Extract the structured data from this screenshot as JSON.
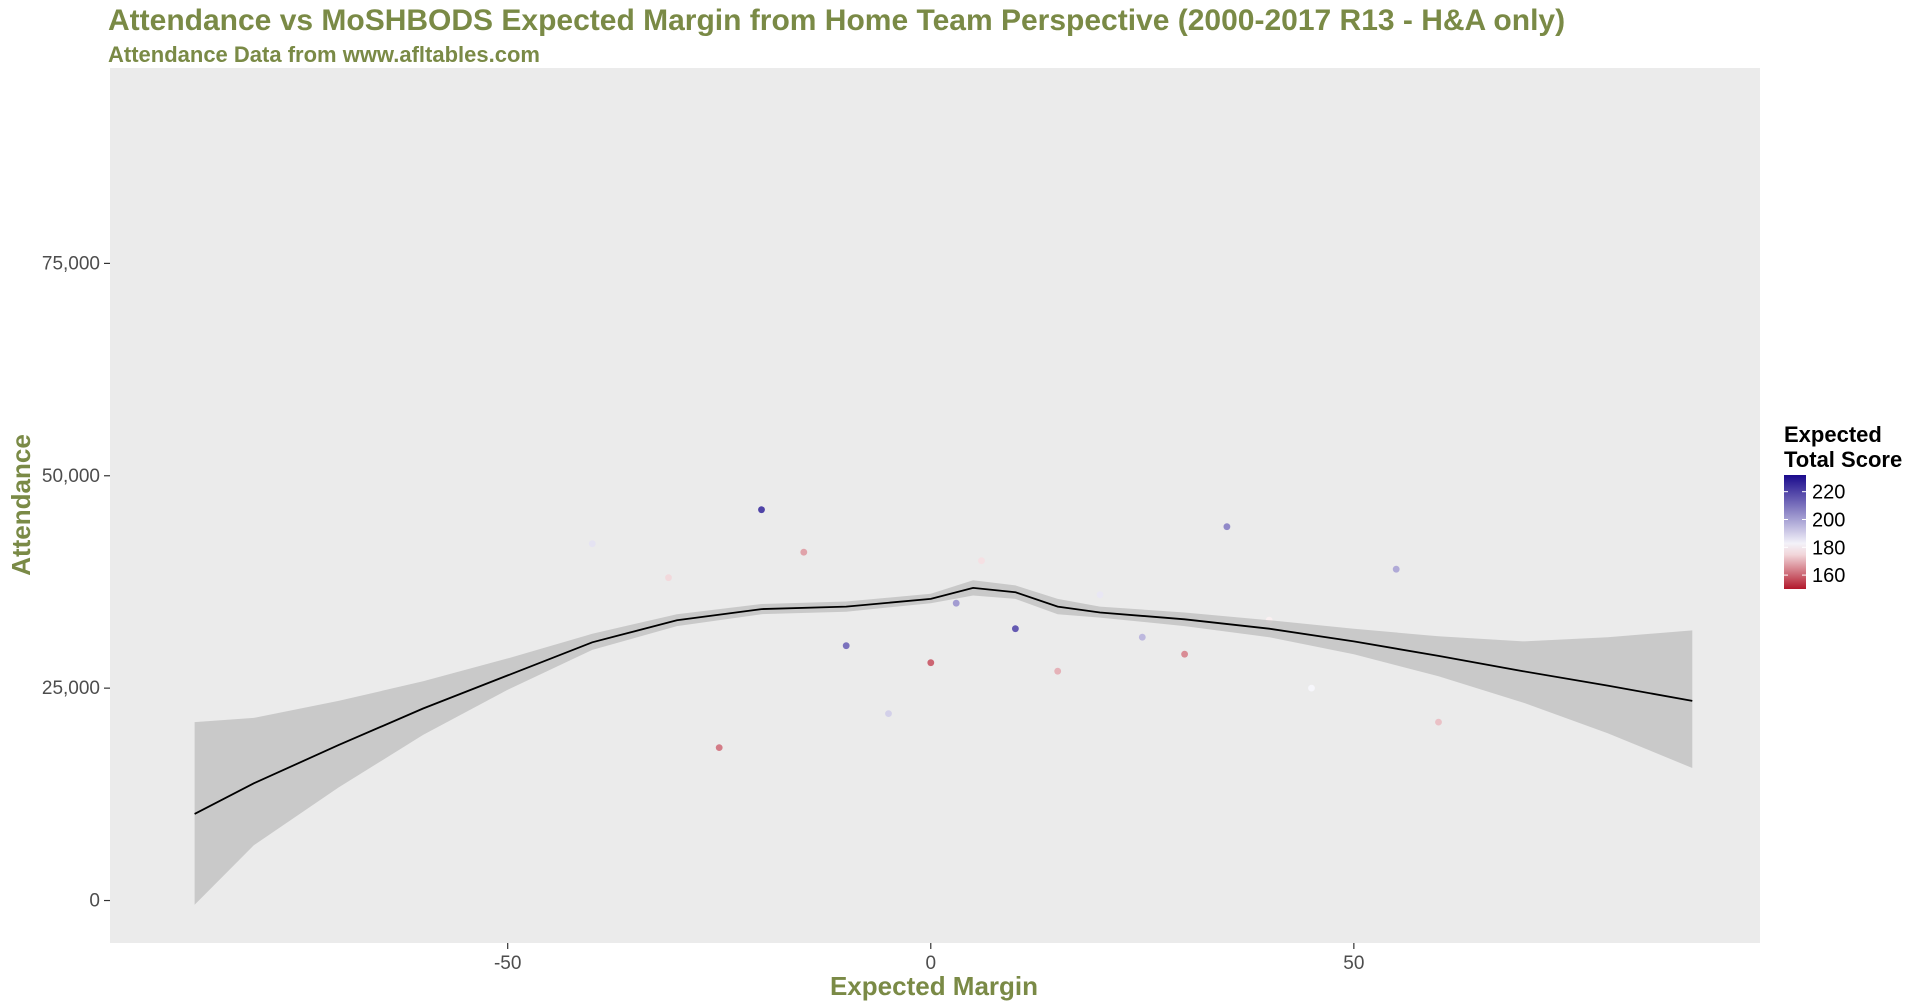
{
  "chart_data": {
    "type": "scatter",
    "title": "Attendance vs MoSHBODS Expected Margin from Home Team Perspective (2000-2017 R13 - H&A only)",
    "subtitle": "Attendance Data from www.afltables.com",
    "xlabel": "Expected Margin",
    "ylabel": "Attendance",
    "xlim": [
      -97,
      98
    ],
    "ylim": [
      -5000,
      98000
    ],
    "x_ticks": [
      -50,
      0,
      50
    ],
    "x_tick_labels": [
      "-50",
      "0",
      "50"
    ],
    "y_ticks": [
      0,
      25000,
      50000,
      75000
    ],
    "y_tick_labels": [
      "0",
      "25,000",
      "50,000",
      "75,000"
    ],
    "grid": false,
    "background": "#ebebeb",
    "legend": {
      "title_line1": "Expected",
      "title_line2": "Total Score",
      "labels": [
        "220",
        "200",
        "180",
        "160"
      ],
      "values": [
        220,
        200,
        180,
        160
      ],
      "color_low": "#b2182b",
      "color_mid": "#ffffff",
      "color_high": "#1a0a8c",
      "domain": [
        150,
        232
      ],
      "placement": "right"
    },
    "smooth": {
      "name": "loess",
      "line_color": "#000000",
      "band_color": "#bdbdbd",
      "x": [
        -87,
        -80,
        -70,
        -60,
        -50,
        -40,
        -30,
        -20,
        -10,
        0,
        5,
        10,
        15,
        20,
        30,
        40,
        50,
        60,
        70,
        80,
        90
      ],
      "y": [
        10200,
        13800,
        18300,
        22600,
        26500,
        30400,
        33000,
        34300,
        34600,
        35500,
        36800,
        36300,
        34600,
        33900,
        33100,
        32000,
        30500,
        28800,
        27000,
        25300,
        23500
      ],
      "lower": [
        -500,
        6500,
        13300,
        19500,
        24800,
        29500,
        32300,
        33700,
        34000,
        35000,
        35900,
        35500,
        33700,
        33300,
        32300,
        31000,
        29000,
        26400,
        23300,
        19700,
        15600
      ],
      "upper": [
        21000,
        21500,
        23500,
        25800,
        28500,
        31400,
        33700,
        34900,
        35200,
        36100,
        37700,
        37100,
        35500,
        34600,
        33900,
        33000,
        32000,
        31100,
        30500,
        31000,
        31800
      ]
    },
    "points": [
      [
        -40,
        42000,
        186
      ],
      [
        -31,
        38000,
        175
      ],
      [
        -15,
        41000,
        168
      ],
      [
        -10,
        30000,
        210
      ],
      [
        -5,
        22000,
        190
      ],
      [
        0,
        28000,
        160
      ],
      [
        3,
        35000,
        201
      ],
      [
        6,
        40000,
        176
      ],
      [
        10,
        32000,
        215
      ],
      [
        15,
        27000,
        170
      ],
      [
        20,
        36000,
        185
      ],
      [
        25,
        31000,
        195
      ],
      [
        30,
        29000,
        165
      ],
      [
        35,
        44000,
        205
      ],
      [
        40,
        33000,
        178
      ],
      [
        45,
        25000,
        182
      ],
      [
        55,
        39000,
        198
      ],
      [
        60,
        21000,
        172
      ],
      [
        -20,
        46000,
        220
      ],
      [
        -25,
        18000,
        163
      ]
    ]
  }
}
